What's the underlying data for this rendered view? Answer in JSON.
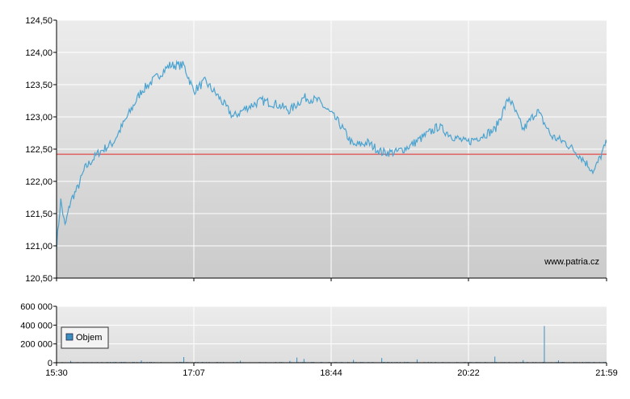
{
  "watermark": "www.patria.cz",
  "chart_data": [
    {
      "type": "line",
      "ylim": [
        120.5,
        124.5
      ],
      "y_ticks": [
        "124,50",
        "124,00",
        "123,50",
        "123,00",
        "122,50",
        "122,00",
        "121,50",
        "121,00",
        "120,50"
      ],
      "y_tick_values": [
        124.5,
        124.0,
        123.5,
        123.0,
        122.5,
        122.0,
        121.5,
        121.0,
        120.5
      ],
      "x_ticks": [
        "15:30",
        "17:07",
        "18:44",
        "20:22",
        "21:59"
      ],
      "reference_line": {
        "value": 122.42,
        "color": "#e06060"
      },
      "line_color": "#4aa3d0",
      "grid": true,
      "series": [
        {
          "x_min": [
            0,
            3,
            6,
            10,
            15,
            20,
            30,
            40,
            50,
            60,
            70,
            80,
            90,
            97,
            105,
            115,
            125,
            135,
            145,
            155,
            165,
            175,
            185,
            194,
            200,
            210,
            220,
            230,
            240,
            250,
            260,
            270,
            280,
            290,
            300,
            310,
            320,
            330,
            340,
            350,
            360,
            370,
            380,
            390,
            400,
            410,
            420,
            430,
            440,
            450,
            460,
            470,
            480,
            490,
            500,
            510,
            520,
            530,
            540,
            550,
            560,
            570,
            580,
            589
          ],
          "values": [
            121.0,
            121.7,
            121.3,
            121.7,
            121.9,
            122.2,
            122.45,
            122.6,
            123.0,
            123.4,
            123.6,
            123.8,
            123.8,
            123.4,
            123.55,
            123.3,
            123.0,
            123.15,
            123.25,
            123.2,
            123.1,
            123.3,
            123.25,
            123.05,
            122.9,
            122.55,
            122.6,
            122.45,
            122.45,
            122.55,
            122.7,
            122.85,
            122.7,
            122.6,
            122.7,
            122.8,
            123.3,
            122.8,
            123.1,
            122.7,
            122.6,
            122.4,
            122.15,
            122.65,
            122.6,
            122.7,
            122.45,
            122.6,
            122.4,
            122.45,
            122.35,
            122.6,
            122.7,
            122.55,
            122.45,
            122.7,
            122.55,
            122.45,
            122.45,
            122.55,
            122.45,
            122.6,
            122.4,
            122.3
          ]
        }
      ]
    },
    {
      "type": "bar",
      "ylim": [
        0,
        600000
      ],
      "y_ticks": [
        "600 000",
        "400 000",
        "200 000",
        "0"
      ],
      "y_tick_values": [
        600000,
        400000,
        200000,
        0
      ],
      "x_ticks": [
        "15:30",
        "17:07",
        "18:44",
        "20:22",
        "21:59"
      ],
      "legend": {
        "label": "Objem",
        "position": "top-left"
      },
      "bar_color": "#3a8fc0",
      "series": [
        {
          "name": "Objem",
          "x_min": [
            10,
            60,
            90,
            130,
            165,
            170,
            175,
            210,
            230,
            255,
            310,
            330,
            345,
            355,
            400,
            430,
            460,
            480,
            500,
            515,
            550,
            560
          ],
          "values": [
            20000,
            25000,
            60000,
            22000,
            20000,
            55000,
            40000,
            30000,
            50000,
            35000,
            65000,
            28000,
            390000,
            25000,
            20000,
            30000,
            20000,
            20000,
            25000,
            45000,
            50000,
            40000
          ]
        }
      ]
    }
  ]
}
